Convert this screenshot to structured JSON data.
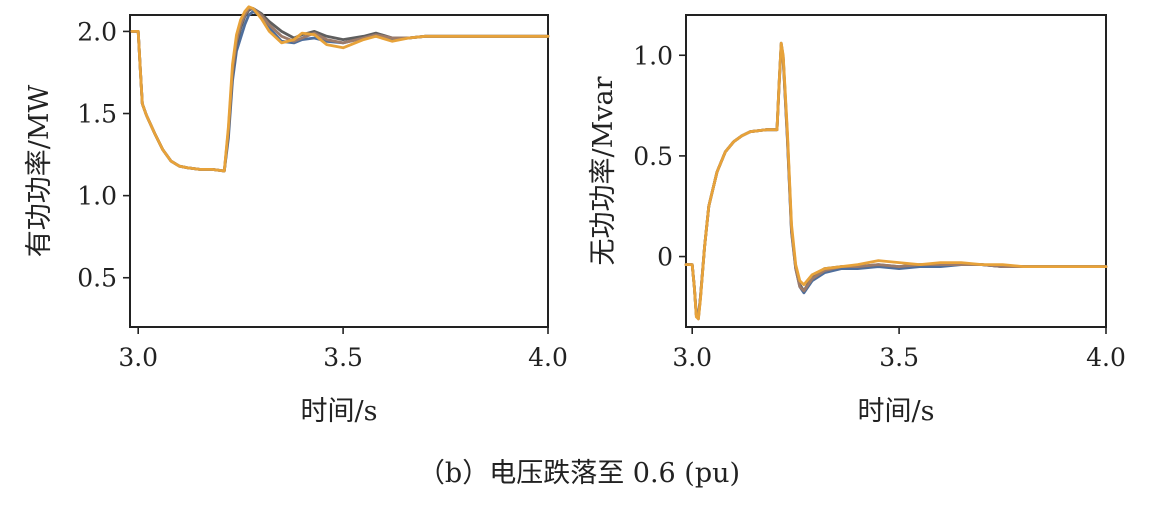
{
  "caption": "（b）电压跌落至 0.6 (pu)",
  "chart_data": [
    {
      "type": "line",
      "title": "",
      "xlabel": "时间/s",
      "ylabel": "有功功率/MW",
      "xlim": [
        2.98,
        4.0
      ],
      "ylim": [
        0.2,
        2.1
      ],
      "xticks": [
        3.0,
        3.5,
        4.0
      ],
      "xtick_labels": [
        "3.0",
        "3.5",
        "4.0"
      ],
      "yticks": [
        0.5,
        1.0,
        1.5,
        2.0
      ],
      "ytick_labels": [
        "0.5",
        "1.0",
        "1.5",
        "2.0"
      ],
      "grid": false,
      "series": [
        {
          "name": "s1",
          "color": "#4e6e9c",
          "x": [
            2.985,
            3.0,
            3.005,
            3.01,
            3.02,
            3.04,
            3.06,
            3.08,
            3.1,
            3.12,
            3.15,
            3.18,
            3.21,
            3.22,
            3.23,
            3.24,
            3.25,
            3.26,
            3.27,
            3.28,
            3.3,
            3.32,
            3.35,
            3.38,
            3.4,
            3.43,
            3.46,
            3.5,
            3.55,
            3.58,
            3.62,
            3.66,
            3.7,
            3.75,
            3.8,
            3.85,
            3.9,
            3.95,
            4.0
          ],
          "y": [
            2.0,
            2.0,
            1.78,
            1.56,
            1.49,
            1.38,
            1.28,
            1.21,
            1.18,
            1.17,
            1.16,
            1.16,
            1.15,
            1.35,
            1.7,
            1.88,
            1.96,
            2.04,
            2.1,
            2.12,
            2.1,
            2.02,
            1.94,
            1.93,
            1.95,
            1.96,
            1.94,
            1.93,
            1.96,
            1.97,
            1.95,
            1.96,
            1.97,
            1.97,
            1.97,
            1.97,
            1.97,
            1.97,
            1.97
          ]
        },
        {
          "name": "s2",
          "color": "#5e5e5e",
          "x": [
            2.985,
            3.0,
            3.005,
            3.01,
            3.02,
            3.04,
            3.06,
            3.08,
            3.1,
            3.12,
            3.15,
            3.18,
            3.21,
            3.22,
            3.23,
            3.24,
            3.25,
            3.26,
            3.27,
            3.28,
            3.3,
            3.32,
            3.35,
            3.38,
            3.4,
            3.43,
            3.46,
            3.5,
            3.55,
            3.58,
            3.62,
            3.66,
            3.7,
            3.75,
            3.8,
            3.85,
            3.9,
            3.95,
            4.0
          ],
          "y": [
            2.0,
            2.0,
            1.78,
            1.56,
            1.49,
            1.38,
            1.28,
            1.21,
            1.18,
            1.17,
            1.16,
            1.16,
            1.15,
            1.38,
            1.74,
            1.92,
            2.02,
            2.09,
            2.13,
            2.14,
            2.11,
            2.06,
            2.0,
            1.96,
            1.98,
            2.0,
            1.97,
            1.95,
            1.97,
            1.99,
            1.96,
            1.96,
            1.97,
            1.97,
            1.97,
            1.97,
            1.97,
            1.97,
            1.97
          ]
        },
        {
          "name": "s3",
          "color": "#9c7b6a",
          "x": [
            2.985,
            3.0,
            3.005,
            3.01,
            3.02,
            3.04,
            3.06,
            3.08,
            3.1,
            3.12,
            3.15,
            3.18,
            3.21,
            3.22,
            3.23,
            3.24,
            3.25,
            3.26,
            3.27,
            3.28,
            3.3,
            3.32,
            3.35,
            3.38,
            3.4,
            3.43,
            3.46,
            3.5,
            3.55,
            3.58,
            3.62,
            3.66,
            3.7,
            3.75,
            3.8,
            3.85,
            3.9,
            3.95,
            4.0
          ],
          "y": [
            2.0,
            2.0,
            1.78,
            1.56,
            1.49,
            1.38,
            1.28,
            1.21,
            1.18,
            1.17,
            1.16,
            1.16,
            1.15,
            1.4,
            1.76,
            1.94,
            2.04,
            2.1,
            2.14,
            2.14,
            2.1,
            2.04,
            1.97,
            1.94,
            1.96,
            1.99,
            1.95,
            1.93,
            1.96,
            1.98,
            1.96,
            1.96,
            1.97,
            1.97,
            1.97,
            1.97,
            1.97,
            1.97,
            1.97
          ]
        },
        {
          "name": "s4",
          "color": "#e7a23a",
          "x": [
            2.985,
            3.0,
            3.005,
            3.01,
            3.02,
            3.04,
            3.06,
            3.08,
            3.1,
            3.12,
            3.15,
            3.18,
            3.21,
            3.22,
            3.23,
            3.24,
            3.25,
            3.26,
            3.27,
            3.28,
            3.3,
            3.32,
            3.35,
            3.38,
            3.4,
            3.43,
            3.46,
            3.5,
            3.55,
            3.58,
            3.62,
            3.66,
            3.7,
            3.75,
            3.8,
            3.85,
            3.9,
            3.95,
            4.0
          ],
          "y": [
            2.0,
            2.0,
            1.78,
            1.56,
            1.49,
            1.38,
            1.28,
            1.21,
            1.18,
            1.17,
            1.16,
            1.16,
            1.15,
            1.42,
            1.8,
            1.98,
            2.07,
            2.12,
            2.15,
            2.14,
            2.08,
            2.0,
            1.93,
            1.95,
            1.99,
            1.98,
            1.92,
            1.9,
            1.95,
            1.97,
            1.94,
            1.96,
            1.97,
            1.97,
            1.97,
            1.97,
            1.97,
            1.97,
            1.97
          ]
        }
      ]
    },
    {
      "type": "line",
      "title": "",
      "xlabel": "时间/s",
      "ylabel": "无功功率/Mvar",
      "xlim": [
        2.985,
        4.0
      ],
      "ylim": [
        -0.35,
        1.2
      ],
      "xticks": [
        3.0,
        3.5,
        4.0
      ],
      "xtick_labels": [
        "3.0",
        "3.5",
        "4.0"
      ],
      "yticks": [
        0.0,
        0.5,
        1.0
      ],
      "ytick_labels": [
        "0",
        "0.5",
        "1.0"
      ],
      "grid": false,
      "series": [
        {
          "name": "s1",
          "color": "#4e6e9c",
          "x": [
            2.985,
            3.0,
            3.005,
            3.01,
            3.015,
            3.02,
            3.03,
            3.04,
            3.06,
            3.08,
            3.1,
            3.12,
            3.14,
            3.18,
            3.205,
            3.21,
            3.215,
            3.22,
            3.23,
            3.24,
            3.25,
            3.26,
            3.27,
            3.29,
            3.32,
            3.36,
            3.4,
            3.45,
            3.5,
            3.55,
            3.6,
            3.65,
            3.7,
            3.75,
            3.8,
            3.9,
            4.0
          ],
          "y": [
            -0.04,
            -0.04,
            -0.15,
            -0.29,
            -0.3,
            -0.2,
            0.05,
            0.25,
            0.42,
            0.52,
            0.57,
            0.6,
            0.62,
            0.63,
            0.63,
            0.85,
            1.05,
            0.98,
            0.58,
            0.12,
            -0.06,
            -0.15,
            -0.18,
            -0.12,
            -0.08,
            -0.06,
            -0.06,
            -0.05,
            -0.06,
            -0.05,
            -0.05,
            -0.04,
            -0.04,
            -0.05,
            -0.05,
            -0.05,
            -0.05
          ]
        },
        {
          "name": "s2",
          "color": "#5e5e5e",
          "x": [
            2.985,
            3.0,
            3.005,
            3.01,
            3.015,
            3.02,
            3.03,
            3.04,
            3.06,
            3.08,
            3.1,
            3.12,
            3.14,
            3.18,
            3.205,
            3.21,
            3.215,
            3.22,
            3.23,
            3.24,
            3.25,
            3.26,
            3.27,
            3.29,
            3.32,
            3.36,
            3.4,
            3.45,
            3.5,
            3.55,
            3.6,
            3.65,
            3.7,
            3.75,
            3.8,
            3.9,
            4.0
          ],
          "y": [
            -0.04,
            -0.04,
            -0.15,
            -0.29,
            -0.3,
            -0.2,
            0.05,
            0.25,
            0.42,
            0.52,
            0.57,
            0.6,
            0.62,
            0.63,
            0.63,
            0.86,
            1.06,
            0.99,
            0.6,
            0.14,
            -0.05,
            -0.14,
            -0.17,
            -0.1,
            -0.06,
            -0.05,
            -0.05,
            -0.04,
            -0.05,
            -0.04,
            -0.04,
            -0.04,
            -0.04,
            -0.05,
            -0.05,
            -0.05,
            -0.05
          ]
        },
        {
          "name": "s3",
          "color": "#9c7b6a",
          "x": [
            2.985,
            3.0,
            3.005,
            3.01,
            3.015,
            3.02,
            3.03,
            3.04,
            3.06,
            3.08,
            3.1,
            3.12,
            3.14,
            3.18,
            3.205,
            3.21,
            3.215,
            3.22,
            3.23,
            3.24,
            3.25,
            3.26,
            3.27,
            3.29,
            3.32,
            3.36,
            3.4,
            3.45,
            3.5,
            3.55,
            3.6,
            3.65,
            3.7,
            3.75,
            3.8,
            3.9,
            4.0
          ],
          "y": [
            -0.04,
            -0.04,
            -0.15,
            -0.29,
            -0.31,
            -0.2,
            0.05,
            0.25,
            0.42,
            0.52,
            0.57,
            0.6,
            0.62,
            0.63,
            0.63,
            0.85,
            1.05,
            0.98,
            0.59,
            0.13,
            -0.06,
            -0.15,
            -0.17,
            -0.11,
            -0.07,
            -0.05,
            -0.05,
            -0.04,
            -0.05,
            -0.04,
            -0.04,
            -0.04,
            -0.04,
            -0.05,
            -0.05,
            -0.05,
            -0.05
          ]
        },
        {
          "name": "s4",
          "color": "#e7a23a",
          "x": [
            2.985,
            3.0,
            3.005,
            3.01,
            3.015,
            3.02,
            3.03,
            3.04,
            3.06,
            3.08,
            3.1,
            3.12,
            3.14,
            3.18,
            3.205,
            3.21,
            3.215,
            3.22,
            3.23,
            3.24,
            3.25,
            3.26,
            3.27,
            3.29,
            3.32,
            3.36,
            3.4,
            3.45,
            3.5,
            3.55,
            3.6,
            3.65,
            3.7,
            3.75,
            3.8,
            3.9,
            4.0
          ],
          "y": [
            -0.04,
            -0.04,
            -0.15,
            -0.3,
            -0.31,
            -0.21,
            0.05,
            0.25,
            0.42,
            0.52,
            0.57,
            0.6,
            0.62,
            0.63,
            0.63,
            0.86,
            1.06,
            1.0,
            0.62,
            0.16,
            -0.04,
            -0.12,
            -0.14,
            -0.09,
            -0.06,
            -0.05,
            -0.04,
            -0.02,
            -0.03,
            -0.04,
            -0.03,
            -0.03,
            -0.04,
            -0.04,
            -0.05,
            -0.05,
            -0.05
          ]
        }
      ]
    }
  ]
}
